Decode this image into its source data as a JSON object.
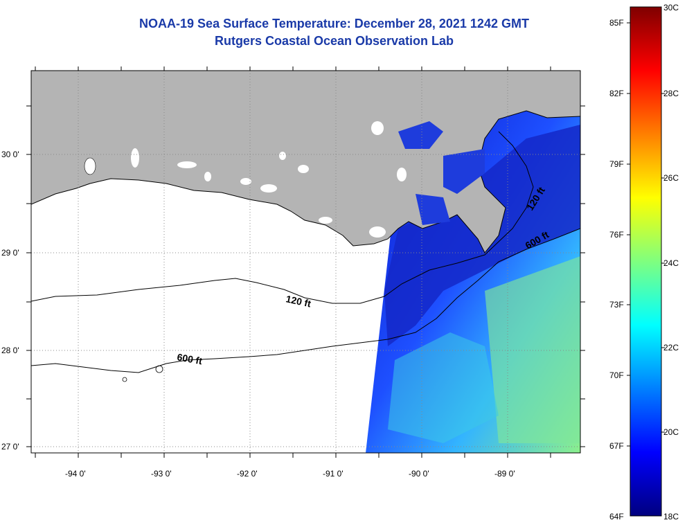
{
  "title": {
    "line1": "NOAA-19 Sea Surface Temperature:  December 28, 2021 1242 GMT",
    "line2": "Rutgers Coastal Ocean Observation Lab",
    "color": "#1a3aa8"
  },
  "map": {
    "lon_labels": [
      "-94 0'",
      "-93 0'",
      "-92 0'",
      "-91 0'",
      "-90 0'",
      "-89 0'"
    ],
    "lat_labels": [
      "30 0'",
      "29 0'",
      "28 0'",
      "27 0'"
    ],
    "contour_labels": {
      "c120_west": "120 ft",
      "c600_west": "600 ft",
      "c120_east": "120 ft",
      "c600_east": "600 ft"
    },
    "land_color": "#b4b4b4",
    "water_no_data_color": "#ffffff"
  },
  "colorbar": {
    "colors": [
      "#00007f",
      "#0000ff",
      "#007fff",
      "#00ffff",
      "#7fff7f",
      "#ffff00",
      "#ff7f00",
      "#ff0000",
      "#7f0000"
    ],
    "fahrenheit_labels": [
      "85F",
      "82F",
      "79F",
      "76F",
      "73F",
      "70F",
      "67F",
      "64F"
    ],
    "celsius_labels": [
      "30C",
      "28C",
      "26C",
      "24C",
      "22C",
      "20C",
      "18C"
    ]
  }
}
